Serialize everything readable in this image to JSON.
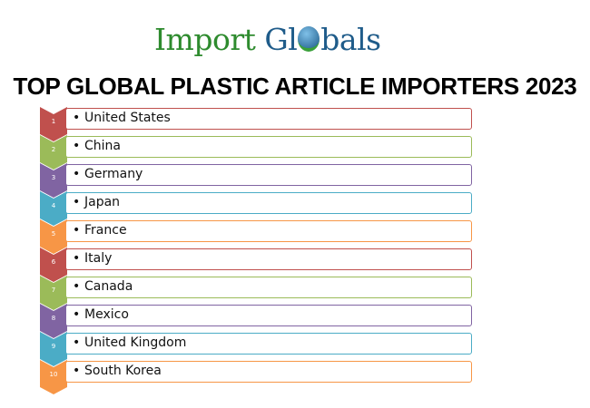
{
  "logo": {
    "part1": "Import",
    "part2a": "Gl",
    "part2b": "bals"
  },
  "title": "TOP GLOBAL PLASTIC ARTICLE IMPORTERS 2023",
  "colors": [
    "#c0504d",
    "#9bbb59",
    "#8064a2",
    "#4bacc6",
    "#f79646"
  ],
  "items": [
    {
      "rank": "1",
      "label": "United States"
    },
    {
      "rank": "2",
      "label": "China"
    },
    {
      "rank": "3",
      "label": "Germany"
    },
    {
      "rank": "4",
      "label": "Japan"
    },
    {
      "rank": "5",
      "label": "France"
    },
    {
      "rank": "6",
      "label": "Italy"
    },
    {
      "rank": "7",
      "label": "Canada"
    },
    {
      "rank": "8",
      "label": "Mexico"
    },
    {
      "rank": "9",
      "label": "United Kingdom"
    },
    {
      "rank": "10",
      "label": "South Korea"
    }
  ]
}
